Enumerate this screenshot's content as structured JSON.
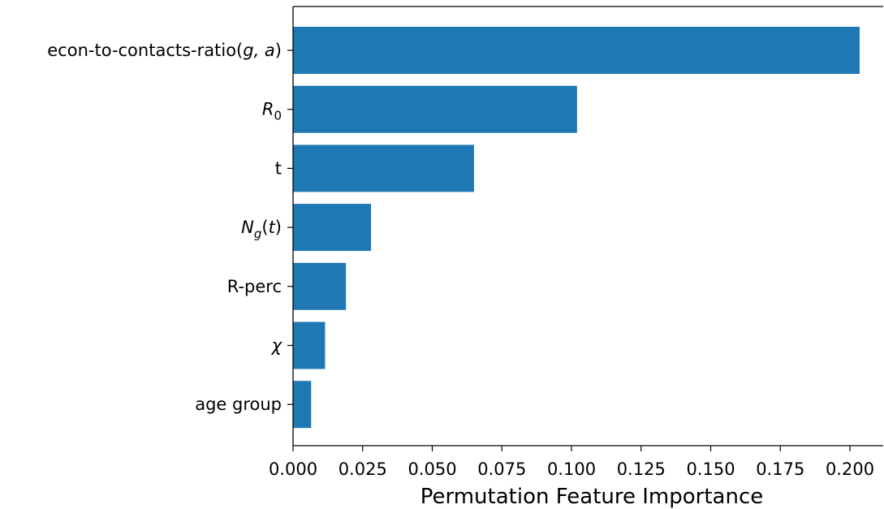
{
  "chart_data": {
    "type": "bar",
    "orientation": "horizontal",
    "categories": [
      {
        "text": "econ-to-contacts-ratio(",
        "math": "g, a",
        "suffix": ")"
      },
      {
        "text": "",
        "math": "R",
        "sub": "0"
      },
      {
        "text": "t"
      },
      {
        "text": "",
        "math": "N",
        "subMath": "g",
        "suffix": "(",
        "math2": "t",
        "suffix2": ")"
      },
      {
        "text": "R-perc"
      },
      {
        "text": "",
        "math": "χ"
      },
      {
        "text": "age group"
      }
    ],
    "values": [
      0.2035,
      0.102,
      0.065,
      0.028,
      0.019,
      0.0115,
      0.0065
    ],
    "xlabel": "Permutation Feature Importance",
    "ylabel": "",
    "title": "",
    "xlim": [
      0,
      0.21
    ],
    "xticks": [
      "0.000",
      "0.025",
      "0.050",
      "0.075",
      "0.100",
      "0.125",
      "0.150",
      "0.175",
      "0.200"
    ],
    "bar_color": "#1f77b4",
    "grid": false
  }
}
